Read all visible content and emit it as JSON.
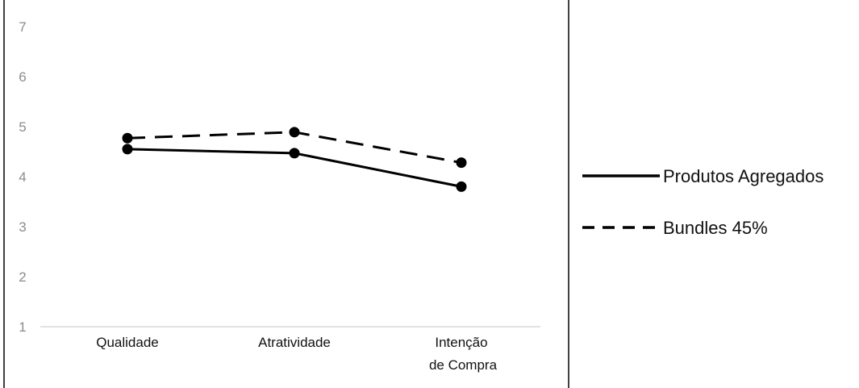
{
  "chart_data": {
    "type": "line",
    "title": "",
    "xlabel": "",
    "ylabel": "",
    "categories": [
      "Qualidade",
      "Atratividade",
      "Intenção de Compra"
    ],
    "category_label_lines": [
      [
        "Qualidade"
      ],
      [
        "Atratividade"
      ],
      [
        "Intenção",
        "de Compra"
      ]
    ],
    "yticks": [
      "1",
      "2",
      "3",
      "4",
      "5",
      "6",
      "7"
    ],
    "ylim": [
      1,
      7
    ],
    "grid": false,
    "legend_position": "right",
    "series": [
      {
        "name": "Produtos Agregados",
        "line_style": "solid",
        "color": "#000000",
        "values": [
          4.55,
          4.47,
          3.8
        ]
      },
      {
        "name": "Bundles 45%",
        "line_style": "dashed",
        "color": "#000000",
        "values": [
          4.77,
          4.89,
          4.28
        ]
      }
    ]
  }
}
